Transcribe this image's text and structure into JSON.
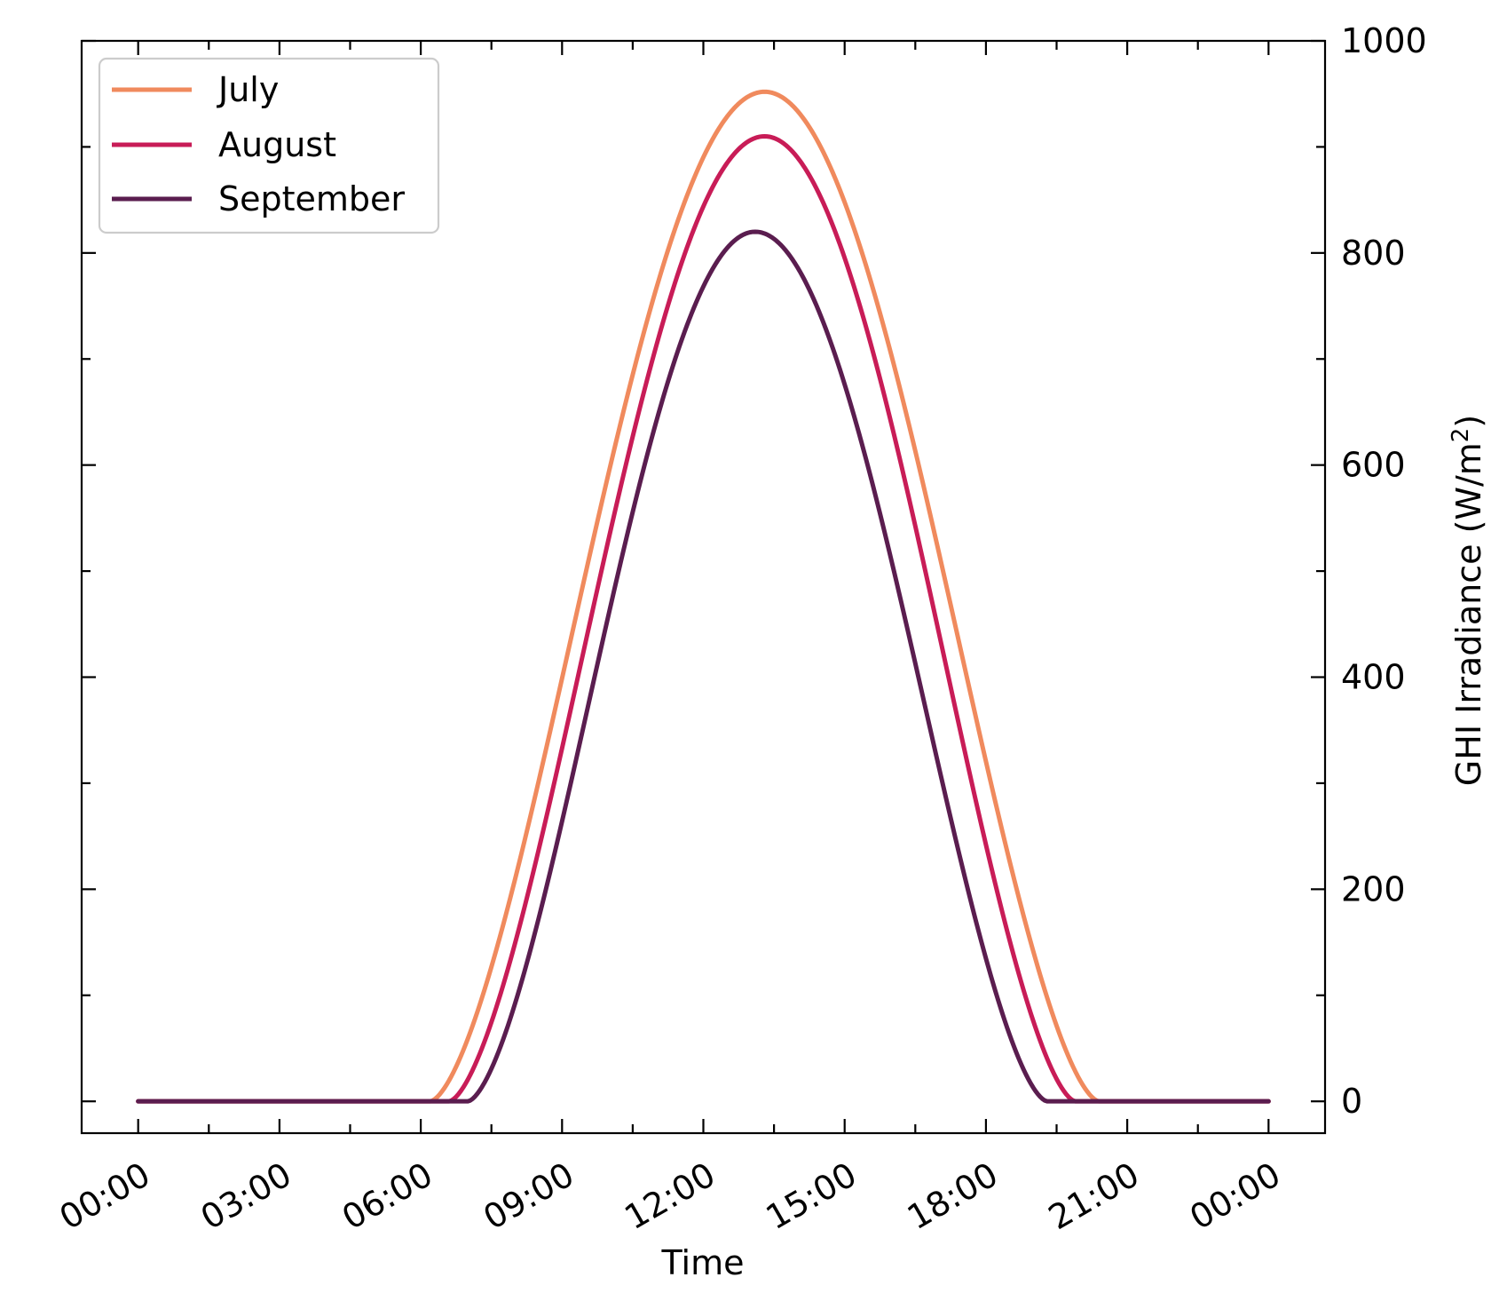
{
  "chart_data": {
    "type": "line",
    "title": "",
    "xlabel": "Time",
    "ylabel_main": "GHI Irradiance (W/m",
    "ylabel_sup": "2",
    "ylabel_close": ")",
    "x_tick_labels": [
      "00:00",
      "03:00",
      "06:00",
      "09:00",
      "12:00",
      "15:00",
      "18:00",
      "21:00",
      "00:00"
    ],
    "x_tick_hours": [
      0,
      3,
      6,
      9,
      12,
      15,
      18,
      21,
      24
    ],
    "x_minor_hours": [
      1.5,
      4.5,
      7.5,
      10.5,
      13.5,
      16.5,
      19.5,
      22.5
    ],
    "xlim_hours": [
      -1.2,
      25.2
    ],
    "y_tick_values": [
      0,
      200,
      400,
      600,
      800,
      1000
    ],
    "y_tick_labels": [
      "0",
      "200",
      "400",
      "600",
      "800",
      "1000"
    ],
    "y_minor_values": [
      100,
      300,
      500,
      700,
      900
    ],
    "ylim": [
      -30,
      1000
    ],
    "y_axis_side": "right",
    "grid": false,
    "legend_position": "top-left",
    "series": [
      {
        "name": "July",
        "color": "#f08a5d",
        "sunrise_hour": 6.2,
        "sunset_hour": 20.4,
        "peak_hour": 13.3,
        "peak_value": 952
      },
      {
        "name": "August",
        "color": "#c81c57",
        "sunrise_hour": 6.6,
        "sunset_hour": 19.9,
        "peak_hour": 13.3,
        "peak_value": 910
      },
      {
        "name": "September",
        "color": "#5a1d4f",
        "sunrise_hour": 7.0,
        "sunset_hour": 19.3,
        "peak_hour": 13.1,
        "peak_value": 820
      }
    ],
    "x_range_hours": [
      0,
      24
    ],
    "sample_step_hours": 0.05
  }
}
